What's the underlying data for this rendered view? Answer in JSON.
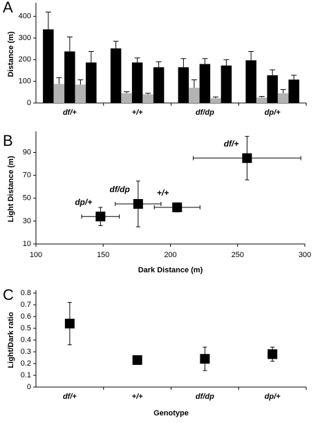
{
  "chart_data": [
    {
      "type": "bar",
      "title": "A",
      "ylabel": "Distance (m)",
      "categories": [
        "df/+",
        "+/+",
        "df/dp",
        "dp/+"
      ],
      "series": [
        {
          "color": "#000000",
          "values": [
            340,
            252,
            165,
            197
          ],
          "errors": [
            80,
            33,
            40,
            41
          ]
        },
        {
          "color": "#b3b3b3",
          "values": [
            88,
            45,
            70,
            25
          ],
          "errors": [
            29,
            7,
            37,
            5
          ]
        },
        {
          "color": "#000000",
          "values": [
            238,
            187,
            180,
            128
          ],
          "errors": [
            67,
            21,
            25,
            25
          ]
        },
        {
          "color": "#b3b3b3",
          "values": [
            85,
            40,
            22,
            45
          ],
          "errors": [
            22,
            5,
            6,
            17
          ]
        },
        {
          "color": "#000000",
          "values": [
            187,
            165,
            173,
            108
          ],
          "errors": [
            51,
            25,
            27,
            20
          ]
        }
      ],
      "ylim": [
        0,
        450
      ],
      "yticks": [
        0,
        100,
        200,
        300,
        400
      ]
    },
    {
      "type": "scatter",
      "title": "B",
      "xlabel": "Dark Distance (m)",
      "ylabel": "Light Distance (m)",
      "labels": [
        "dp/+",
        "df/dp",
        "+/+",
        "df/+"
      ],
      "x": [
        148,
        176,
        205,
        257
      ],
      "x_errors": [
        14,
        17,
        17,
        40
      ],
      "values": [
        34,
        45,
        42,
        85
      ],
      "errors": [
        8,
        20,
        4,
        19
      ],
      "color": "#000000",
      "xlim": [
        100,
        300
      ],
      "xticks": [
        100,
        150,
        200,
        250,
        300
      ],
      "ylim": [
        10,
        106
      ],
      "yticks": [
        10,
        30,
        50,
        70,
        90
      ]
    },
    {
      "type": "dot",
      "title": "C",
      "xlabel": "Genotype",
      "ylabel": "Light/Dark ratio",
      "categories": [
        "df/+",
        "+/+",
        "df/dp",
        "dp/+"
      ],
      "values": [
        0.54,
        0.23,
        0.24,
        0.28
      ],
      "errors": [
        0.18,
        0.01,
        0.1,
        0.06
      ],
      "color": "#000000",
      "ylim": [
        0,
        0.8
      ],
      "yticks": [
        0,
        0.1,
        0.2,
        0.3,
        0.4,
        0.5,
        0.6,
        0.7,
        0.8
      ]
    }
  ]
}
